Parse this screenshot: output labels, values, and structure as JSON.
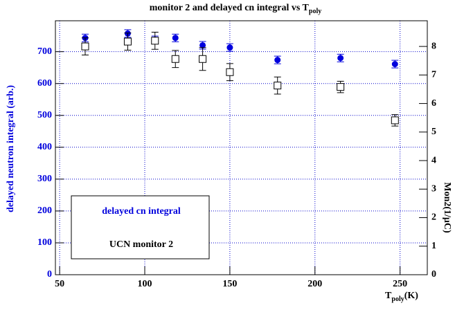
{
  "chart_data": {
    "type": "scatter",
    "title": "monitor 2 and delayed cn integral vs T",
    "title_sub": "poly",
    "xlabel": "T",
    "xlabel_sub": "poly",
    "xlabel_unit": "(K)",
    "ylabel": "delayed neutron integral (arb.)",
    "y2label": "Mon2(1/μC)",
    "xlim": [
      47.5,
      266
    ],
    "xticks": [
      50,
      100,
      150,
      200,
      250
    ],
    "ylim": [
      0,
      797
    ],
    "yticks": [
      0,
      100,
      200,
      300,
      400,
      500,
      600,
      700
    ],
    "y2lim": [
      0,
      8.9
    ],
    "y2ticks": [
      0,
      1,
      2,
      3,
      4,
      5,
      6,
      7,
      8
    ],
    "grid": true,
    "grid_color": "#0000cc",
    "series": [
      {
        "name": "delayed cn integral",
        "color": "#0000dd",
        "marker": "filled-circle",
        "x": [
          65,
          90,
          106,
          118,
          134,
          150,
          178,
          215,
          247
        ],
        "values": [
          743,
          757,
          737,
          743,
          720,
          713,
          674,
          680,
          661
        ],
        "errors": [
          12,
          12,
          12,
          12,
          12,
          12,
          12,
          12,
          12
        ]
      },
      {
        "name": "UCN monitor 2",
        "color": "#000000",
        "marker": "open-square",
        "axis": "y2",
        "x": [
          65,
          90,
          106,
          118,
          134,
          150,
          178,
          215,
          247
        ],
        "values": [
          8.0,
          8.17,
          8.2,
          7.56,
          7.56,
          7.1,
          6.63,
          6.58,
          5.41
        ],
        "errors": [
          0.3,
          0.3,
          0.3,
          0.3,
          0.4,
          0.3,
          0.3,
          0.2,
          0.2
        ]
      }
    ]
  }
}
